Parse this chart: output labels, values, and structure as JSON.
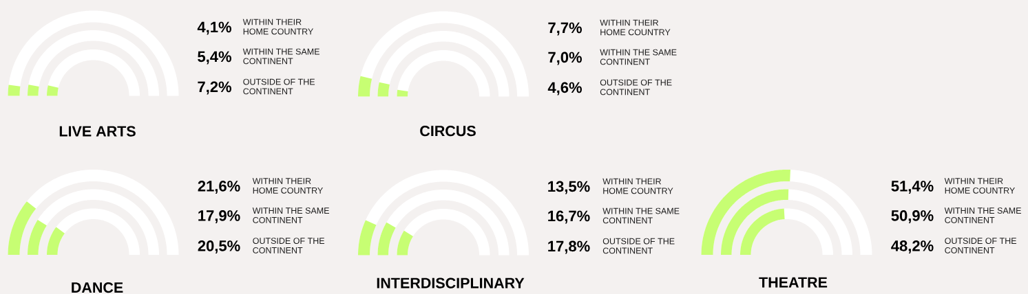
{
  "chart_data": [
    {
      "type": "other",
      "title": "LIVE ARTS",
      "categories": [
        "WITHIN THEIR HOME COUNTRY",
        "WITHIN THE SAME CONTINENT",
        "OUTSIDE OF THE CONTINENT"
      ],
      "values": [
        4.1,
        5.4,
        7.2
      ],
      "value_labels": [
        "4,1%",
        "5,4%",
        "7,2%"
      ],
      "color": "#c7fe73"
    },
    {
      "type": "other",
      "title": "CIRCUS",
      "categories": [
        "WITHIN THEIR HOME COUNTRY",
        "WITHIN THE SAME CONTINENT",
        "OUTSIDE OF THE CONTINENT"
      ],
      "values": [
        7.7,
        7.0,
        4.6
      ],
      "value_labels": [
        "7,7%",
        "7,0%",
        "4,6%"
      ],
      "color": "#c7fe73"
    },
    {
      "type": "other",
      "title": "DANCE",
      "categories": [
        "WITHIN THEIR HOME COUNTRY",
        "WITHIN THE SAME CONTINENT",
        "OUTSIDE OF THE CONTINENT"
      ],
      "values": [
        21.6,
        17.9,
        20.5
      ],
      "value_labels": [
        "21,6%",
        "17,9%",
        "20,5%"
      ],
      "color": "#c7fe73"
    },
    {
      "type": "other",
      "title": "INTERDISCIPLINARY",
      "categories": [
        "WITHIN THEIR HOME COUNTRY",
        "WITHIN THE SAME CONTINENT",
        "OUTSIDE OF THE CONTINENT"
      ],
      "values": [
        13.5,
        16.7,
        17.8
      ],
      "value_labels": [
        "13,5%",
        "16,7%",
        "17,8%"
      ],
      "color": "#c7fe73"
    },
    {
      "type": "other",
      "title": "THEATRE",
      "categories": [
        "WITHIN THEIR HOME COUNTRY",
        "WITHIN THE SAME CONTINENT",
        "OUTSIDE OF THE CONTINENT"
      ],
      "values": [
        51.4,
        50.9,
        48.2
      ],
      "value_labels": [
        "51,4%",
        "50,9%",
        "48,2%"
      ],
      "color": "#c7fe73"
    }
  ]
}
